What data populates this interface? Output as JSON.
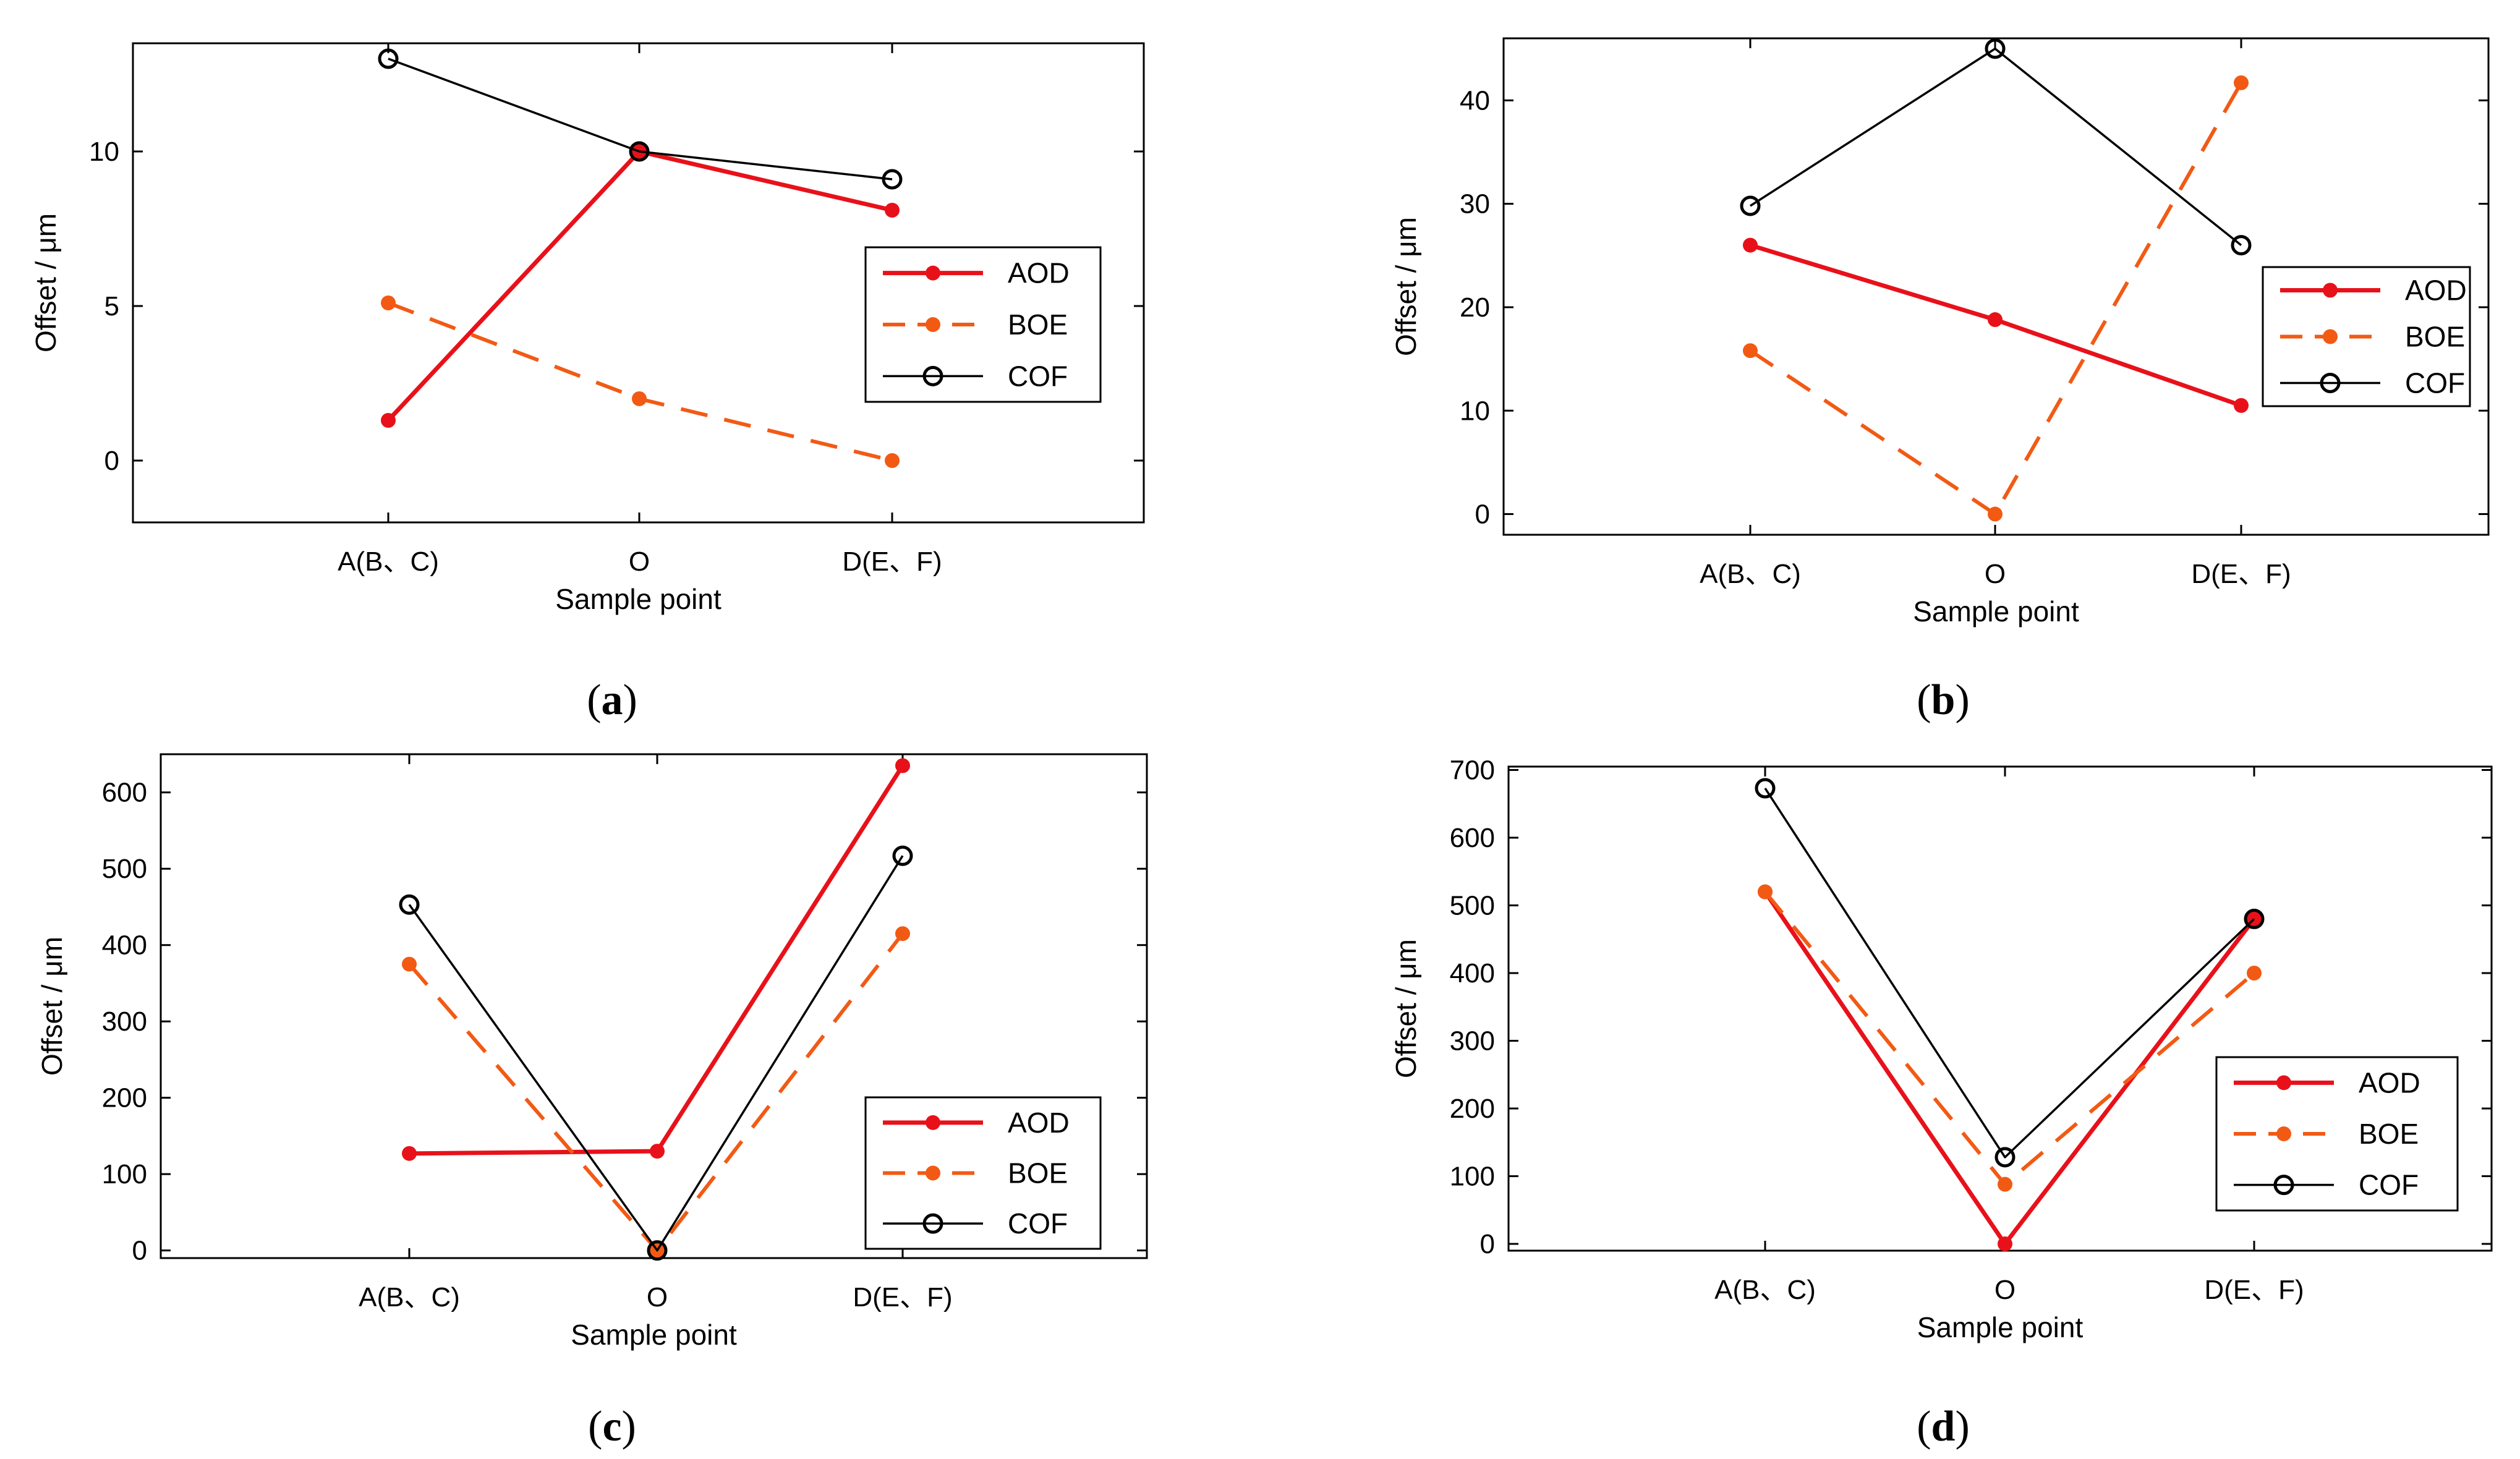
{
  "colors": {
    "AOD": "#e8111a",
    "BOE": "#f25a14",
    "COF": "#000000"
  },
  "chart_data": [
    {
      "id": "a",
      "type": "line",
      "caption": "(a)",
      "caption_open": "(",
      "caption_letter": "a",
      "caption_close": ")",
      "xlabel": "Sample point",
      "ylabel": "Offset / μm",
      "categories": [
        "A(B、C)",
        "O",
        "D(E、F)"
      ],
      "ylim": [
        -2,
        13.5
      ],
      "yticks": [
        0,
        5,
        10
      ],
      "series": [
        {
          "name": "AOD",
          "values": [
            1.3,
            10.0,
            8.1
          ]
        },
        {
          "name": "BOE",
          "values": [
            5.1,
            2.0,
            0.0
          ]
        },
        {
          "name": "COF",
          "values": [
            13.0,
            10.0,
            9.1
          ]
        }
      ],
      "legend": [
        "AOD",
        "BOE",
        "COF"
      ]
    },
    {
      "id": "b",
      "type": "line",
      "caption": "(b)",
      "caption_open": "(",
      "caption_letter": "b",
      "caption_close": ")",
      "xlabel": "Sample point",
      "ylabel": "Offset / μm",
      "categories": [
        "A(B、C)",
        "O",
        "D(E、F)"
      ],
      "ylim": [
        -2,
        46
      ],
      "yticks": [
        0,
        10,
        20,
        30,
        40
      ],
      "series": [
        {
          "name": "AOD",
          "values": [
            26.0,
            18.8,
            10.5
          ]
        },
        {
          "name": "BOE",
          "values": [
            15.8,
            0.0,
            41.7
          ]
        },
        {
          "name": "COF",
          "values": [
            29.8,
            45.0,
            26.0
          ]
        }
      ],
      "legend": [
        "AOD",
        "BOE",
        "COF"
      ]
    },
    {
      "id": "c",
      "type": "line",
      "caption": "(c)",
      "caption_open": "(",
      "caption_letter": "c",
      "caption_close": ")",
      "xlabel": "Sample point",
      "ylabel": "Offset / μm",
      "categories": [
        "A(B、C)",
        "O",
        "D(E、F)"
      ],
      "ylim": [
        -10,
        650
      ],
      "yticks": [
        0,
        100,
        200,
        300,
        400,
        500,
        600
      ],
      "series": [
        {
          "name": "AOD",
          "values": [
            127,
            130,
            635
          ]
        },
        {
          "name": "BOE",
          "values": [
            375,
            0,
            415
          ]
        },
        {
          "name": "COF",
          "values": [
            453,
            0,
            517
          ]
        }
      ],
      "legend": [
        "AOD",
        "BOE",
        "COF"
      ]
    },
    {
      "id": "d",
      "type": "line",
      "caption": "(d)",
      "caption_open": "(",
      "caption_letter": "d",
      "caption_close": ")",
      "xlabel": "Sample point",
      "ylabel": "Offset / μm",
      "categories": [
        "A(B、C)",
        "O",
        "D(E、F)"
      ],
      "ylim": [
        -10,
        705
      ],
      "yticks": [
        0,
        100,
        200,
        300,
        400,
        500,
        600,
        700
      ],
      "series": [
        {
          "name": "AOD",
          "values": [
            520,
            0,
            480
          ]
        },
        {
          "name": "BOE",
          "values": [
            520,
            88,
            400
          ]
        },
        {
          "name": "COF",
          "values": [
            673,
            128,
            480
          ]
        }
      ],
      "legend": [
        "AOD",
        "BOE",
        "COF"
      ]
    }
  ]
}
